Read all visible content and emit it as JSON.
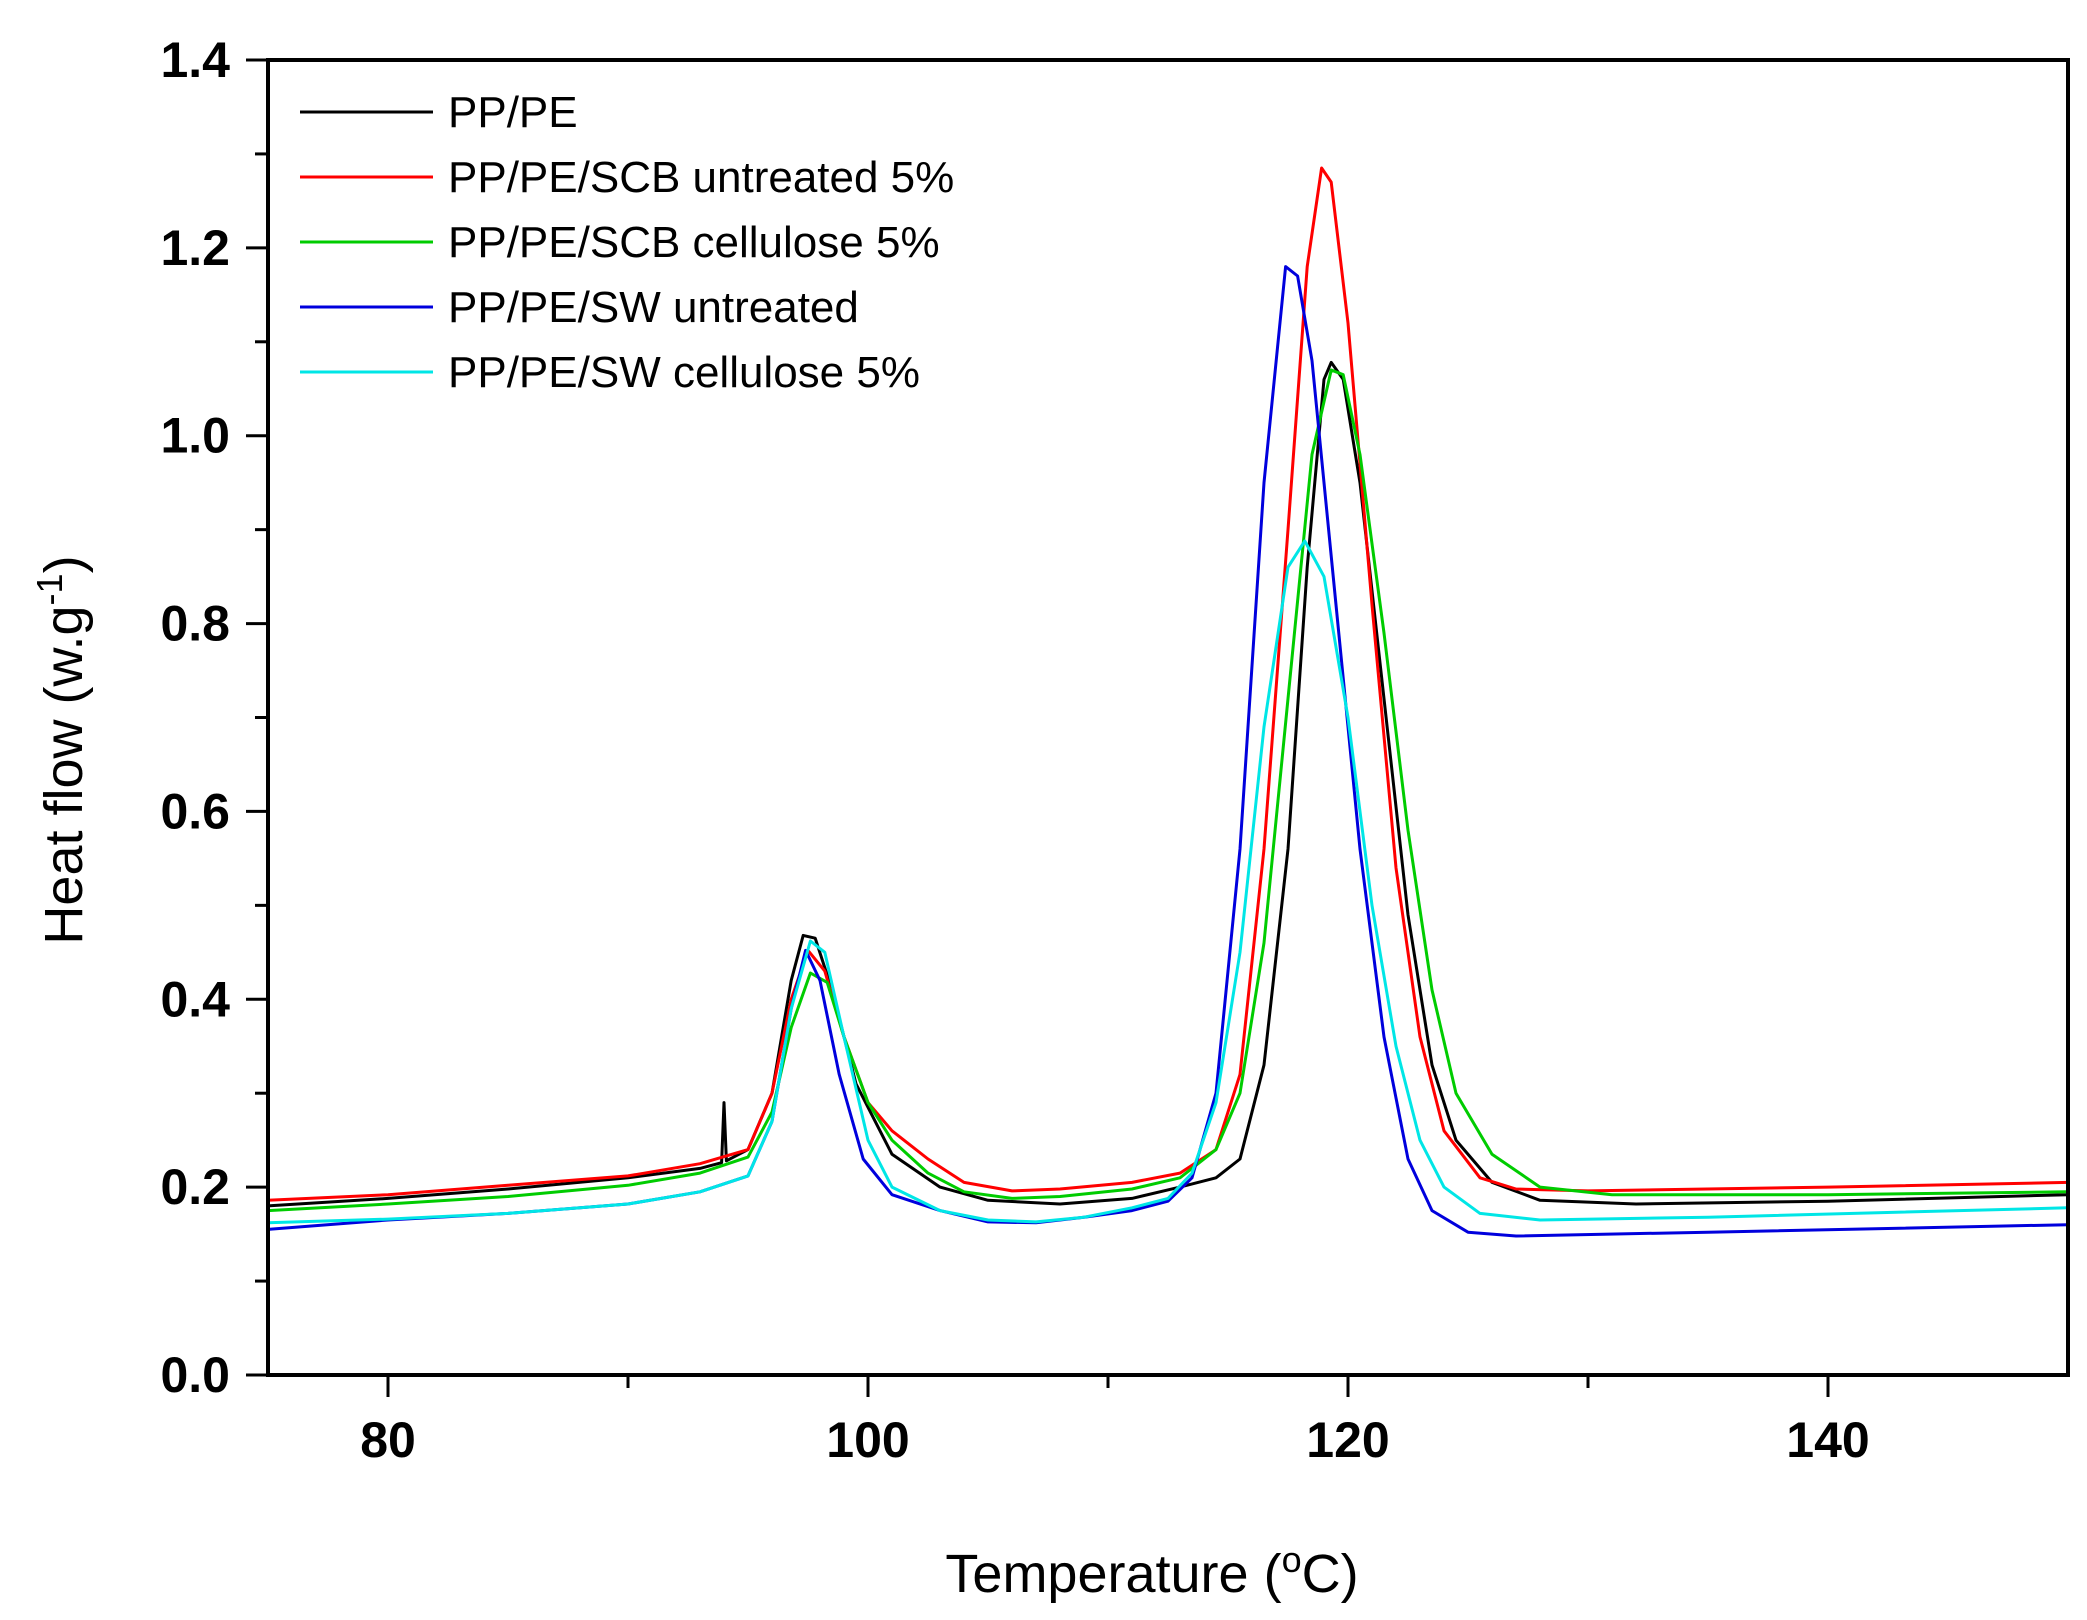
{
  "chart_data": {
    "type": "line",
    "xlabel": "Temperature (",
    "xlabel_sup": "o",
    "xlabel_suffix": "C)",
    "ylabel": "Heat flow (w.g",
    "ylabel_sup": "-1",
    "ylabel_suffix": ")",
    "xlim": [
      75,
      150
    ],
    "ylim": [
      0.0,
      1.4
    ],
    "x_ticks": [
      80,
      100,
      120,
      140
    ],
    "x_tick_labels": [
      "80",
      "100",
      "120",
      "140"
    ],
    "x_minor_ticks": [
      90,
      110,
      130
    ],
    "y_ticks": [
      0.0,
      0.2,
      0.4,
      0.6,
      0.8,
      1.0,
      1.2,
      1.4
    ],
    "y_tick_labels": [
      "0.0",
      "0.2",
      "0.4",
      "0.6",
      "0.8",
      "1.0",
      "1.2",
      "1.4"
    ],
    "y_minor_ticks": [
      0.1,
      0.3,
      0.5,
      0.7,
      0.9,
      1.1,
      1.3
    ],
    "legend_position": "top-left",
    "series": [
      {
        "name": "PP/PE",
        "color": "#000000",
        "points": [
          [
            75,
            0.18
          ],
          [
            80,
            0.188
          ],
          [
            85,
            0.198
          ],
          [
            90,
            0.21
          ],
          [
            93,
            0.22
          ],
          [
            93.9,
            0.226
          ],
          [
            94.0,
            0.29
          ],
          [
            94.1,
            0.228
          ],
          [
            95,
            0.24
          ],
          [
            96,
            0.3
          ],
          [
            96.8,
            0.42
          ],
          [
            97.3,
            0.468
          ],
          [
            97.8,
            0.465
          ],
          [
            98.5,
            0.41
          ],
          [
            99.5,
            0.31
          ],
          [
            101,
            0.235
          ],
          [
            103,
            0.2
          ],
          [
            105,
            0.186
          ],
          [
            108,
            0.182
          ],
          [
            111,
            0.188
          ],
          [
            113,
            0.2
          ],
          [
            114.5,
            0.21
          ],
          [
            115.5,
            0.23
          ],
          [
            116.5,
            0.33
          ],
          [
            117.5,
            0.56
          ],
          [
            118.3,
            0.86
          ],
          [
            119.0,
            1.06
          ],
          [
            119.3,
            1.078
          ],
          [
            119.8,
            1.06
          ],
          [
            120.5,
            0.95
          ],
          [
            121.5,
            0.72
          ],
          [
            122.5,
            0.49
          ],
          [
            123.5,
            0.33
          ],
          [
            124.5,
            0.25
          ],
          [
            126,
            0.205
          ],
          [
            128,
            0.186
          ],
          [
            132,
            0.182
          ],
          [
            140,
            0.185
          ],
          [
            150,
            0.192
          ]
        ]
      },
      {
        "name": "PP/PE/SCB untreated 5%",
        "color": "#ff0000",
        "points": [
          [
            75,
            0.186
          ],
          [
            80,
            0.192
          ],
          [
            85,
            0.202
          ],
          [
            90,
            0.212
          ],
          [
            93,
            0.225
          ],
          [
            95,
            0.24
          ],
          [
            96,
            0.3
          ],
          [
            96.8,
            0.4
          ],
          [
            97.5,
            0.452
          ],
          [
            98.2,
            0.43
          ],
          [
            99,
            0.36
          ],
          [
            100,
            0.29
          ],
          [
            101,
            0.26
          ],
          [
            102.5,
            0.23
          ],
          [
            104,
            0.205
          ],
          [
            106,
            0.196
          ],
          [
            108,
            0.198
          ],
          [
            111,
            0.205
          ],
          [
            113,
            0.215
          ],
          [
            114.5,
            0.24
          ],
          [
            115.5,
            0.32
          ],
          [
            116.5,
            0.56
          ],
          [
            117.5,
            0.9
          ],
          [
            118.3,
            1.18
          ],
          [
            118.9,
            1.285
          ],
          [
            119.3,
            1.27
          ],
          [
            120,
            1.12
          ],
          [
            121,
            0.82
          ],
          [
            122,
            0.54
          ],
          [
            123,
            0.36
          ],
          [
            124,
            0.26
          ],
          [
            125.5,
            0.21
          ],
          [
            127,
            0.198
          ],
          [
            130,
            0.196
          ],
          [
            140,
            0.2
          ],
          [
            150,
            0.205
          ]
        ]
      },
      {
        "name": "PP/PE/SCB cellulose 5%",
        "color": "#00cc00",
        "points": [
          [
            75,
            0.175
          ],
          [
            80,
            0.182
          ],
          [
            85,
            0.19
          ],
          [
            90,
            0.202
          ],
          [
            93,
            0.215
          ],
          [
            95,
            0.232
          ],
          [
            96,
            0.28
          ],
          [
            96.8,
            0.37
          ],
          [
            97.6,
            0.428
          ],
          [
            98.3,
            0.418
          ],
          [
            99,
            0.36
          ],
          [
            100,
            0.29
          ],
          [
            101,
            0.25
          ],
          [
            102.5,
            0.215
          ],
          [
            104,
            0.195
          ],
          [
            106,
            0.188
          ],
          [
            108,
            0.19
          ],
          [
            111,
            0.198
          ],
          [
            113,
            0.21
          ],
          [
            114.5,
            0.24
          ],
          [
            115.5,
            0.3
          ],
          [
            116.5,
            0.46
          ],
          [
            117.5,
            0.72
          ],
          [
            118.5,
            0.98
          ],
          [
            119.3,
            1.07
          ],
          [
            119.8,
            1.065
          ],
          [
            120.5,
            0.98
          ],
          [
            121.5,
            0.79
          ],
          [
            122.5,
            0.58
          ],
          [
            123.5,
            0.41
          ],
          [
            124.5,
            0.3
          ],
          [
            126,
            0.235
          ],
          [
            128,
            0.2
          ],
          [
            131,
            0.192
          ],
          [
            140,
            0.192
          ],
          [
            150,
            0.195
          ]
        ]
      },
      {
        "name": "PP/PE/SW untreated",
        "color": "#0000dd",
        "points": [
          [
            75,
            0.155
          ],
          [
            80,
            0.165
          ],
          [
            85,
            0.172
          ],
          [
            90,
            0.182
          ],
          [
            93,
            0.195
          ],
          [
            95,
            0.212
          ],
          [
            96,
            0.27
          ],
          [
            96.8,
            0.39
          ],
          [
            97.4,
            0.452
          ],
          [
            98,
            0.42
          ],
          [
            98.8,
            0.32
          ],
          [
            99.8,
            0.23
          ],
          [
            101,
            0.192
          ],
          [
            103,
            0.175
          ],
          [
            105,
            0.163
          ],
          [
            107,
            0.162
          ],
          [
            109,
            0.168
          ],
          [
            111,
            0.175
          ],
          [
            112.5,
            0.185
          ],
          [
            113.5,
            0.21
          ],
          [
            114.5,
            0.3
          ],
          [
            115.5,
            0.56
          ],
          [
            116.5,
            0.95
          ],
          [
            117.4,
            1.18
          ],
          [
            117.9,
            1.17
          ],
          [
            118.5,
            1.08
          ],
          [
            119.5,
            0.82
          ],
          [
            120.5,
            0.56
          ],
          [
            121.5,
            0.36
          ],
          [
            122.5,
            0.23
          ],
          [
            123.5,
            0.175
          ],
          [
            125,
            0.152
          ],
          [
            127,
            0.148
          ],
          [
            135,
            0.152
          ],
          [
            150,
            0.16
          ]
        ]
      },
      {
        "name": "PP/PE/SW cellulose 5%",
        "color": "#00e6e6",
        "points": [
          [
            75,
            0.162
          ],
          [
            80,
            0.166
          ],
          [
            85,
            0.172
          ],
          [
            90,
            0.182
          ],
          [
            93,
            0.195
          ],
          [
            95,
            0.212
          ],
          [
            96,
            0.27
          ],
          [
            96.8,
            0.39
          ],
          [
            97.6,
            0.462
          ],
          [
            98.2,
            0.45
          ],
          [
            99,
            0.36
          ],
          [
            100,
            0.25
          ],
          [
            101,
            0.2
          ],
          [
            103,
            0.175
          ],
          [
            105,
            0.165
          ],
          [
            107,
            0.163
          ],
          [
            109,
            0.168
          ],
          [
            111,
            0.178
          ],
          [
            112.5,
            0.188
          ],
          [
            113.5,
            0.215
          ],
          [
            114.5,
            0.29
          ],
          [
            115.5,
            0.45
          ],
          [
            116.5,
            0.69
          ],
          [
            117.5,
            0.86
          ],
          [
            118.2,
            0.888
          ],
          [
            119,
            0.85
          ],
          [
            120,
            0.7
          ],
          [
            121,
            0.5
          ],
          [
            122,
            0.35
          ],
          [
            123,
            0.25
          ],
          [
            124,
            0.2
          ],
          [
            125.5,
            0.172
          ],
          [
            128,
            0.165
          ],
          [
            135,
            0.168
          ],
          [
            150,
            0.178
          ]
        ]
      }
    ]
  }
}
